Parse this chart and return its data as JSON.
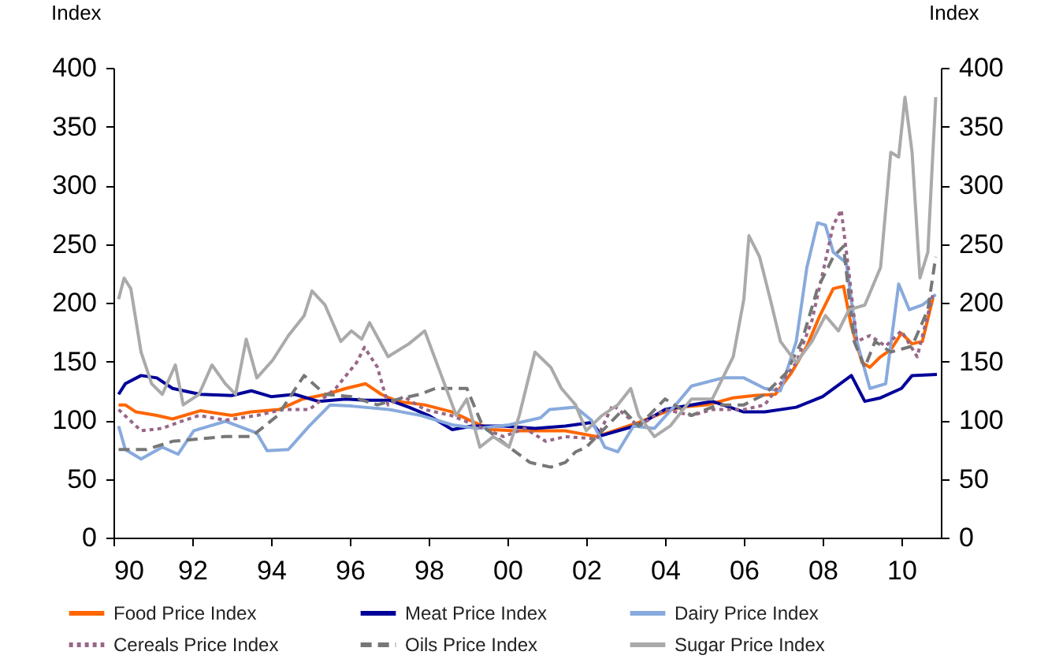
{
  "chart_data": {
    "type": "line",
    "ylabel": "Index",
    "y2label": "Index",
    "xlim": [
      1990,
      2011
    ],
    "xticks": [
      {
        "value": 1990,
        "label": "90"
      },
      {
        "value": 1992,
        "label": "92"
      },
      {
        "value": 1994,
        "label": "94"
      },
      {
        "value": 1996,
        "label": "96"
      },
      {
        "value": 1998,
        "label": "98"
      },
      {
        "value": 2000,
        "label": "00"
      },
      {
        "value": 2002,
        "label": "02"
      },
      {
        "value": 2004,
        "label": "04"
      },
      {
        "value": 2006,
        "label": "06"
      },
      {
        "value": 2008,
        "label": "08"
      },
      {
        "value": 2010,
        "label": "10"
      }
    ],
    "ylim": [
      0,
      400
    ],
    "yticks": [
      0,
      50,
      100,
      150,
      200,
      250,
      300,
      350,
      400
    ],
    "y2lim": [
      0,
      400
    ],
    "y2ticks": [
      0,
      50,
      100,
      150,
      200,
      250,
      300,
      350,
      400
    ],
    "grid": false,
    "legend": "bottom",
    "series": [
      {
        "name": "Food Price Index",
        "color": "#ff6600",
        "line_style": "solid",
        "x": [
          1990.13,
          1990.3,
          1990.57,
          1991.1,
          1991.5,
          1992.2,
          1993.0,
          1993.5,
          1994.2,
          1994.8,
          1995.4,
          1995.9,
          1996.4,
          1996.8,
          1997.2,
          1997.9,
          1998.6,
          1999.1,
          1999.6,
          2000.2,
          2000.67,
          2001.47,
          2002.27,
          2002.53,
          2003.33,
          2004.0,
          2004.4,
          2005.07,
          2005.73,
          2006.27,
          2006.8,
          2007.2,
          2007.6,
          2007.93,
          2008.27,
          2008.53,
          2008.73,
          2009.0,
          2009.2,
          2009.47,
          2009.73,
          2010.0,
          2010.27,
          2010.53,
          2010.8
        ],
        "values": [
          113,
          113,
          107,
          104,
          101,
          108,
          104,
          107,
          109,
          118,
          122,
          127,
          131,
          122,
          116,
          113,
          107,
          99,
          92,
          91,
          91,
          91,
          86,
          89,
          98,
          107,
          111,
          113,
          119,
          121,
          122,
          140,
          163,
          189,
          212,
          214,
          180,
          149,
          145,
          154,
          160,
          174,
          165,
          167,
          204
        ]
      },
      {
        "name": "Meat Price Index",
        "color": "#000099",
        "line_style": "solid",
        "x": [
          1990.13,
          1990.3,
          1990.7,
          1991.1,
          1991.5,
          1992.2,
          1993.0,
          1993.5,
          1994.0,
          1994.6,
          1995.2,
          1995.9,
          1996.4,
          1997.0,
          1997.5,
          1998.0,
          1998.6,
          1999.1,
          1999.9,
          2000.7,
          2001.47,
          2002.13,
          2002.4,
          2003.33,
          2004.0,
          2005.2,
          2006.0,
          2006.53,
          2007.33,
          2008.0,
          2008.73,
          2009.07,
          2009.47,
          2010.0,
          2010.27,
          2010.9
        ],
        "values": [
          122,
          131,
          138,
          136,
          127,
          122,
          121,
          125,
          120,
          122,
          116,
          118,
          117,
          117,
          111,
          104,
          92,
          95,
          95,
          93,
          95,
          98,
          87,
          96,
          109,
          116,
          107,
          107,
          111,
          120,
          138,
          116,
          119,
          127,
          138,
          139
        ]
      },
      {
        "name": "Dairy Price Index",
        "color": "#88aadd",
        "line_style": "solid",
        "x": [
          1990.13,
          1990.3,
          1990.7,
          1991.24,
          1991.64,
          1992.04,
          1992.84,
          1993.64,
          1993.9,
          1994.44,
          1994.97,
          1995.5,
          1996.04,
          1997.0,
          1997.8,
          1998.6,
          1999.24,
          2000.04,
          2000.84,
          2001.07,
          2001.73,
          2002.13,
          2002.47,
          2002.8,
          2003.2,
          2003.73,
          2004.27,
          2004.67,
          2005.47,
          2006.0,
          2006.53,
          2006.93,
          2007.33,
          2007.6,
          2007.87,
          2008.07,
          2008.27,
          2008.6,
          2008.87,
          2009.2,
          2009.6,
          2009.93,
          2010.2,
          2010.53,
          2010.87
        ],
        "values": [
          95,
          75,
          67,
          77,
          71,
          91,
          99,
          89,
          74,
          75,
          95,
          113,
          112,
          109,
          104,
          96,
          93,
          96,
          102,
          109,
          111,
          100,
          77,
          73,
          95,
          93,
          113,
          129,
          136,
          136,
          127,
          125,
          167,
          230,
          268,
          266,
          243,
          234,
          167,
          127,
          131,
          216,
          194,
          198,
          207
        ]
      },
      {
        "name": "Cereals Price Index",
        "color": "#996688",
        "line_style": "dotted",
        "x": [
          1990.13,
          1990.7,
          1991.24,
          1991.64,
          1992.17,
          1992.84,
          1993.64,
          1994.3,
          1994.97,
          1995.64,
          1996.17,
          1996.37,
          1996.7,
          1996.97,
          1997.37,
          1997.9,
          1998.57,
          1999.24,
          1999.9,
          2000.44,
          2000.97,
          2001.47,
          2002.27,
          2002.67,
          2003.33,
          2004.0,
          2004.67,
          2005.2,
          2006.0,
          2006.53,
          2006.93,
          2007.33,
          2007.73,
          2008.0,
          2008.27,
          2008.47,
          2008.67,
          2008.87,
          2009.2,
          2009.6,
          2010.0,
          2010.4,
          2010.8
        ],
        "values": [
          109,
          91,
          93,
          98,
          104,
          100,
          104,
          109,
          109,
          127,
          149,
          162,
          145,
          113,
          120,
          109,
          104,
          95,
          86,
          93,
          82,
          86,
          84,
          113,
          95,
          109,
          104,
          109,
          109,
          113,
          131,
          149,
          185,
          225,
          266,
          279,
          225,
          167,
          172,
          163,
          176,
          154,
          207
        ]
      },
      {
        "name": "Oils Price Index",
        "color": "#777777",
        "line_style": "dashed",
        "x": [
          1990.13,
          1990.84,
          1991.5,
          1992.17,
          1992.84,
          1993.5,
          1994.17,
          1994.84,
          1995.37,
          1996.04,
          1996.7,
          1997.24,
          1997.77,
          1998.17,
          1998.97,
          1999.37,
          2000.04,
          2000.57,
          2001.1,
          2001.47,
          2001.73,
          2002.0,
          2002.53,
          2002.93,
          2003.33,
          2004.0,
          2004.67,
          2005.33,
          2006.0,
          2006.53,
          2007.07,
          2007.47,
          2007.87,
          2008.27,
          2008.53,
          2008.8,
          2009.07,
          2009.33,
          2009.73,
          2010.27,
          2010.67,
          2010.87
        ],
        "values": [
          75,
          75,
          82,
          84,
          86,
          86,
          104,
          138,
          122,
          120,
          113,
          118,
          122,
          127,
          127,
          95,
          77,
          64,
          60,
          64,
          73,
          77,
          95,
          109,
          95,
          118,
          104,
          113,
          113,
          122,
          140,
          167,
          212,
          239,
          248,
          167,
          145,
          167,
          158,
          163,
          194,
          239
        ]
      },
      {
        "name": "Sugar Price Index",
        "color": "#aaaaaa",
        "line_style": "solid",
        "x": [
          1990.13,
          1990.27,
          1990.44,
          1990.7,
          1990.97,
          1991.24,
          1991.57,
          1991.77,
          1992.17,
          1992.5,
          1992.84,
          1993.1,
          1993.37,
          1993.64,
          1994.04,
          1994.44,
          1994.84,
          1995.04,
          1995.37,
          1995.77,
          1996.04,
          1996.3,
          1996.5,
          1996.97,
          1997.5,
          1997.9,
          1998.3,
          1998.7,
          1998.97,
          1999.3,
          1999.64,
          2000.04,
          2000.3,
          2000.7,
          2001.1,
          2001.37,
          2001.73,
          2002.0,
          2002.4,
          2002.8,
          2003.13,
          2003.33,
          2003.73,
          2004.13,
          2004.67,
          2005.2,
          2005.73,
          2006.0,
          2006.13,
          2006.4,
          2006.67,
          2006.93,
          2007.33,
          2007.73,
          2008.07,
          2008.4,
          2008.67,
          2009.07,
          2009.47,
          2009.73,
          2009.93,
          2010.09,
          2010.27,
          2010.47,
          2010.67,
          2010.87
        ],
        "values": [
          203,
          221,
          212,
          158,
          131,
          122,
          147,
          113,
          122,
          147,
          131,
          122,
          169,
          136,
          151,
          172,
          189,
          210,
          198,
          167,
          176,
          169,
          183,
          154,
          165,
          176,
          140,
          104,
          118,
          77,
          86,
          77,
          104,
          158,
          145,
          127,
          113,
          91,
          104,
          113,
          127,
          104,
          86,
          95,
          118,
          118,
          154,
          203,
          257,
          239,
          203,
          167,
          149,
          167,
          189,
          176,
          194,
          198,
          230,
          328,
          324,
          375,
          328,
          221,
          243,
          375
        ]
      }
    ]
  }
}
